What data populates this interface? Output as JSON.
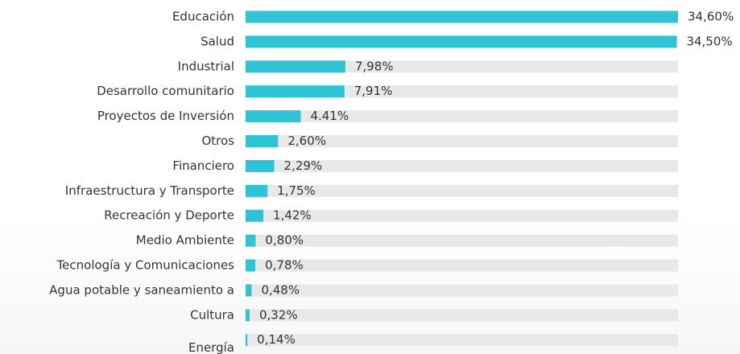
{
  "chart_data": {
    "type": "bar",
    "orientation": "horizontal",
    "categories": [
      "Educación",
      "Salud",
      "Industrial",
      "Desarrollo comunitario",
      "Proyectos de Inversión",
      "Otros",
      "Financiero",
      "Infraestructura y Transporte",
      "Recreación y Deporte",
      "Medio Ambiente",
      "Tecnología y Comunicaciones",
      "Agua potable y saneamiento a",
      "Cultura",
      "Energía"
    ],
    "values": [
      34.6,
      34.5,
      7.98,
      7.91,
      4.41,
      2.6,
      2.29,
      1.75,
      1.42,
      0.8,
      0.78,
      0.48,
      0.32,
      0.14
    ],
    "value_labels": [
      "34,60%",
      "34,50%",
      "7,98%",
      "7,91%",
      "4.41%",
      "2,60%",
      "2,29%",
      "1,75%",
      "1,42%",
      "0,80%",
      "0,78%",
      "0,48%",
      "0,32%",
      "0,14%"
    ],
    "color": "#2ec4d6",
    "track_color": "#e8e8e8"
  }
}
